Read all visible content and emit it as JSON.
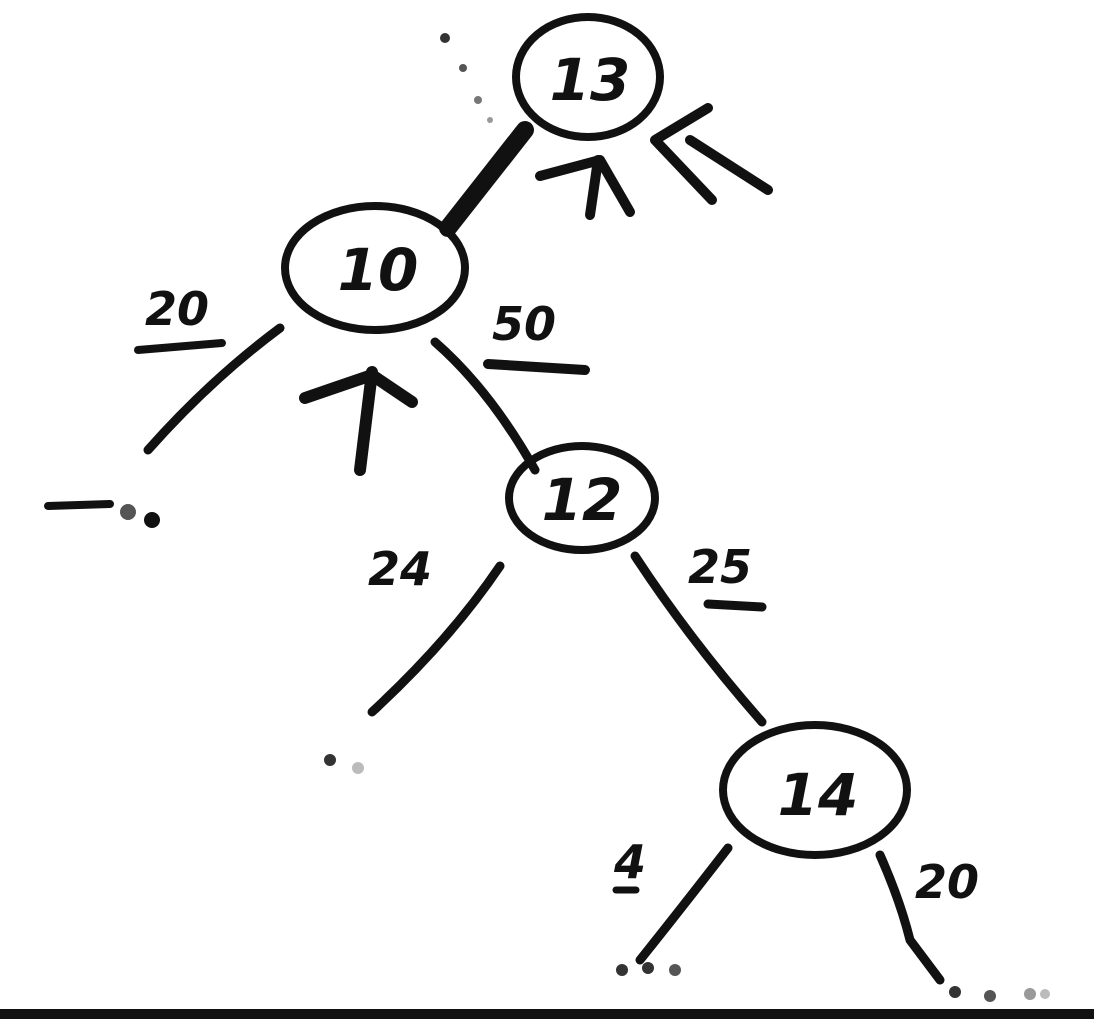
{
  "diagram": {
    "nodes": {
      "n13": {
        "label": "13"
      },
      "n10": {
        "label": "10"
      },
      "n12": {
        "label": "12"
      },
      "n14": {
        "label": "14"
      }
    },
    "edge_labels": {
      "n10_left": "20",
      "n10_right": "50",
      "n12_left": "24",
      "n12_right": "25",
      "n14_left": "4",
      "n14_right": "20"
    },
    "colors": {
      "ink": "#111111",
      "background": "#ffffff"
    },
    "icons": {
      "current_node_marker": "up-arrow-icon"
    }
  }
}
